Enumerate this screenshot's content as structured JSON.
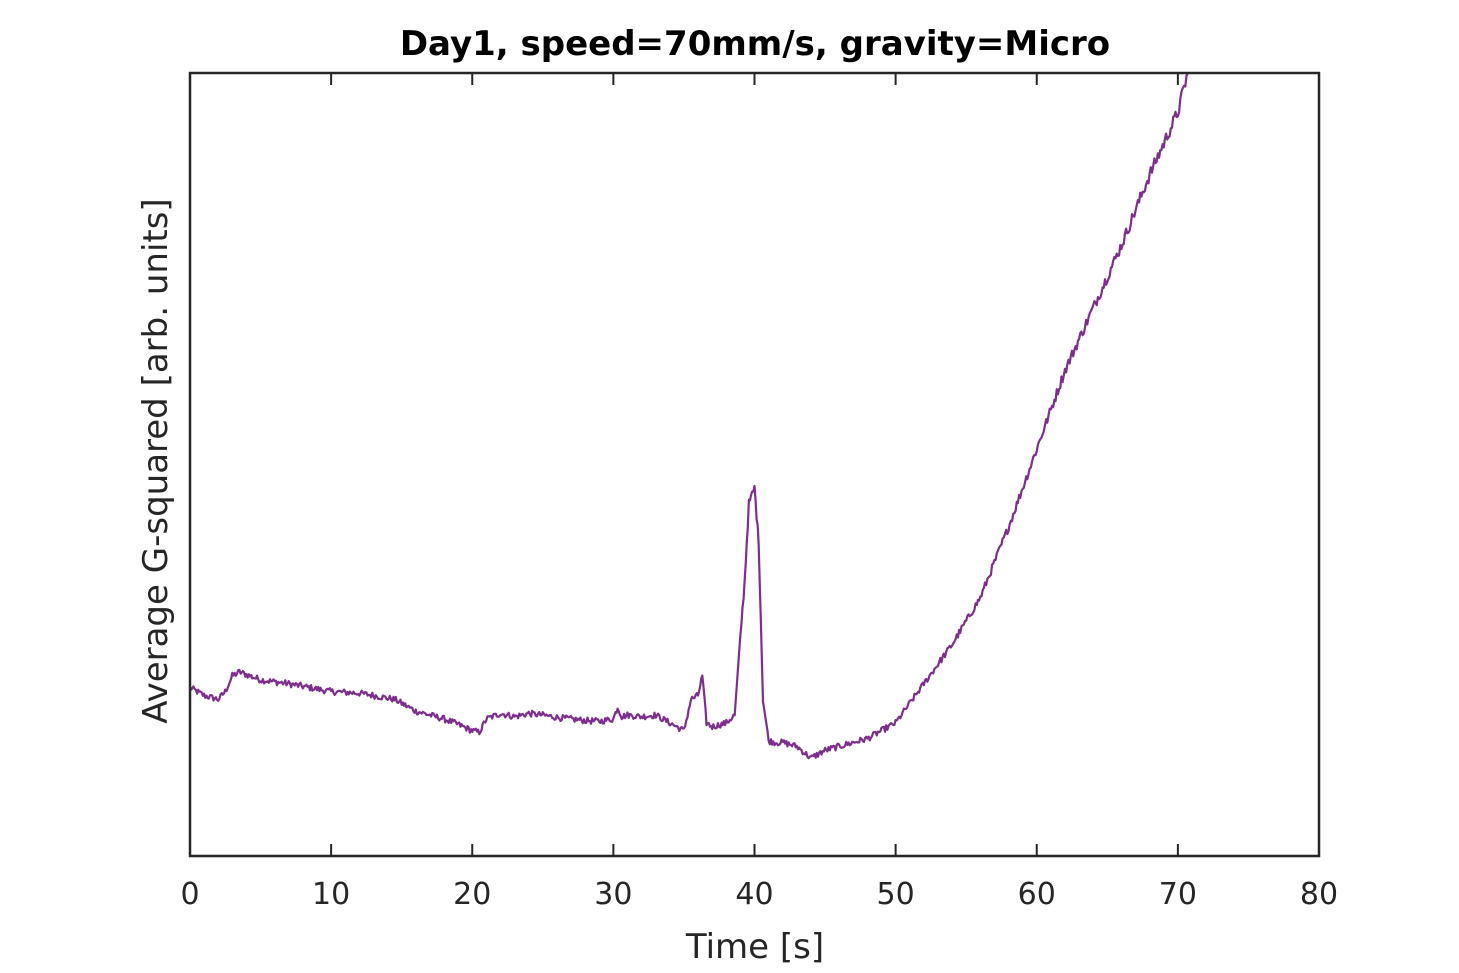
{
  "chart_data": {
    "type": "line",
    "title": "Day1, speed=70mm/s, gravity=Micro",
    "xlabel": "Time [s]",
    "ylabel": "Average G-squared [arb. units]",
    "xlim": [
      0,
      80
    ],
    "ylim": [
      0,
      1
    ],
    "xticks": [
      0,
      10,
      20,
      30,
      40,
      50,
      60,
      70,
      80
    ],
    "xtick_labels": [
      "0",
      "10",
      "20",
      "30",
      "40",
      "50",
      "60",
      "70",
      "80"
    ],
    "yticks_labeled": false,
    "grid": false,
    "legend": "none",
    "series": [
      {
        "color": "#7E2F8E",
        "x": [
          0,
          1,
          2,
          2.5,
          3,
          3.5,
          5,
          7,
          10,
          12,
          13,
          14.5,
          16,
          18,
          19,
          20,
          20.5,
          21,
          22,
          23,
          24,
          25,
          26,
          27,
          28,
          29,
          30,
          30.3,
          30.6,
          31,
          32,
          33,
          33.5,
          34,
          35,
          35.5,
          36,
          36.3,
          36.6,
          37,
          38,
          38.6,
          39,
          39.3,
          39.6,
          40,
          40.3,
          40.6,
          41,
          41.5,
          42,
          43,
          44,
          45,
          46,
          48,
          50,
          52,
          54,
          55,
          56,
          58,
          60,
          62,
          64,
          66,
          68,
          70,
          70.7
        ],
        "y": [
          0.215,
          0.205,
          0.2,
          0.21,
          0.23,
          0.235,
          0.225,
          0.22,
          0.21,
          0.208,
          0.205,
          0.2,
          0.185,
          0.175,
          0.168,
          0.16,
          0.158,
          0.175,
          0.182,
          0.178,
          0.182,
          0.18,
          0.177,
          0.175,
          0.173,
          0.172,
          0.175,
          0.19,
          0.178,
          0.18,
          0.178,
          0.18,
          0.175,
          0.17,
          0.16,
          0.2,
          0.205,
          0.23,
          0.17,
          0.165,
          0.17,
          0.18,
          0.28,
          0.35,
          0.45,
          0.47,
          0.4,
          0.2,
          0.147,
          0.145,
          0.145,
          0.14,
          0.125,
          0.135,
          0.14,
          0.15,
          0.17,
          0.22,
          0.27,
          0.3,
          0.33,
          0.42,
          0.52,
          0.62,
          0.7,
          0.78,
          0.87,
          0.95,
          1.0
        ]
      }
    ]
  }
}
